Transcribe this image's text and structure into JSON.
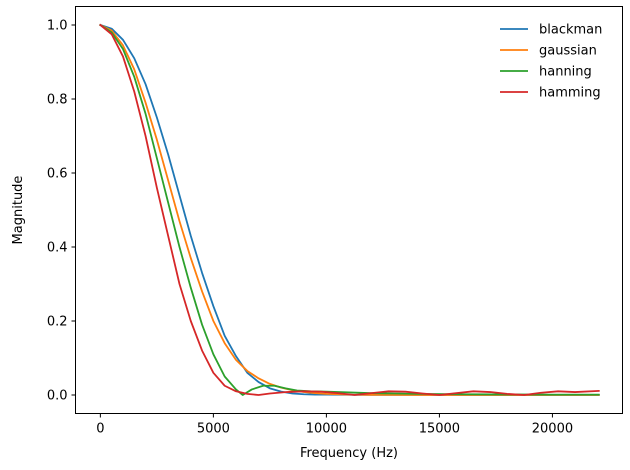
{
  "chart_data": {
    "type": "line",
    "title": "",
    "xlabel": "Frequency (Hz)",
    "ylabel": "Magnitude",
    "xlim": [
      -1100,
      23100
    ],
    "ylim": [
      -0.05,
      1.05
    ],
    "xticks": [
      0,
      5000,
      10000,
      15000,
      20000
    ],
    "xtick_labels": [
      "0",
      "5000",
      "10000",
      "15000",
      "20000"
    ],
    "yticks": [
      0.0,
      0.2,
      0.4,
      0.6,
      0.8,
      1.0
    ],
    "ytick_labels": [
      "0.0",
      "0.2",
      "0.4",
      "0.6",
      "0.8",
      "1.0"
    ],
    "grid": false,
    "legend": "top-right",
    "series": [
      {
        "name": "blackman",
        "color": "#1f77b4",
        "x": [
          0,
          500,
          1000,
          1500,
          2000,
          2500,
          3000,
          3500,
          4000,
          4500,
          5000,
          5500,
          6000,
          6500,
          7000,
          7500,
          8000,
          8500,
          9000,
          9500,
          10000,
          11000,
          12000,
          14000,
          16000,
          18000,
          20000,
          22050
        ],
        "y": [
          1.0,
          0.99,
          0.96,
          0.91,
          0.84,
          0.75,
          0.65,
          0.54,
          0.43,
          0.33,
          0.24,
          0.16,
          0.105,
          0.06,
          0.035,
          0.018,
          0.009,
          0.004,
          0.002,
          0.0012,
          0.001,
          0.0007,
          0.0005,
          0.0003,
          0.0002,
          0.0001,
          0.0001,
          0.0001
        ]
      },
      {
        "name": "gaussian",
        "color": "#ff7f0e",
        "x": [
          0,
          500,
          1000,
          1500,
          2000,
          2500,
          3000,
          3500,
          4000,
          4500,
          5000,
          5500,
          6000,
          6500,
          7000,
          7500,
          8000,
          8500,
          9000,
          9500,
          10000,
          11000,
          12000,
          14000,
          16000,
          18000,
          20000,
          22050
        ],
        "y": [
          1.0,
          0.985,
          0.945,
          0.88,
          0.79,
          0.69,
          0.58,
          0.47,
          0.37,
          0.28,
          0.2,
          0.14,
          0.095,
          0.065,
          0.045,
          0.03,
          0.02,
          0.013,
          0.008,
          0.005,
          0.003,
          0.001,
          0.0005,
          0.0002,
          0.0001,
          0.0001,
          0.0001,
          0.0001
        ]
      },
      {
        "name": "hanning",
        "color": "#2ca02c",
        "x": [
          0,
          500,
          1000,
          1500,
          2000,
          2500,
          3000,
          3500,
          4000,
          4500,
          5000,
          5500,
          6000,
          6300,
          6700,
          7200,
          7700,
          8200,
          8700,
          9300,
          10000,
          11000,
          12000,
          13000,
          14000,
          16000,
          18000,
          20000,
          22050
        ],
        "y": [
          1.0,
          0.98,
          0.935,
          0.86,
          0.76,
          0.64,
          0.52,
          0.4,
          0.29,
          0.19,
          0.11,
          0.05,
          0.015,
          0.0,
          0.015,
          0.025,
          0.025,
          0.018,
          0.012,
          0.01,
          0.009,
          0.007,
          0.005,
          0.004,
          0.003,
          0.002,
          0.0015,
          0.001,
          0.001
        ]
      },
      {
        "name": "hamming",
        "color": "#d62728",
        "x": [
          0,
          500,
          1000,
          1500,
          2000,
          2500,
          3000,
          3500,
          4000,
          4500,
          5000,
          5500,
          6000,
          6500,
          7000,
          7500,
          8250,
          9000,
          9750,
          10500,
          11250,
          12000,
          12750,
          13500,
          14250,
          15000,
          15750,
          16500,
          17250,
          18000,
          18750,
          19500,
          20250,
          21000,
          22050
        ],
        "y": [
          1.0,
          0.975,
          0.915,
          0.82,
          0.7,
          0.56,
          0.43,
          0.3,
          0.2,
          0.12,
          0.06,
          0.025,
          0.01,
          0.003,
          0.0,
          0.004,
          0.008,
          0.01,
          0.009,
          0.005,
          0.0,
          0.005,
          0.01,
          0.009,
          0.004,
          0.0,
          0.005,
          0.01,
          0.008,
          0.003,
          0.0,
          0.006,
          0.01,
          0.008,
          0.011
        ]
      }
    ]
  }
}
